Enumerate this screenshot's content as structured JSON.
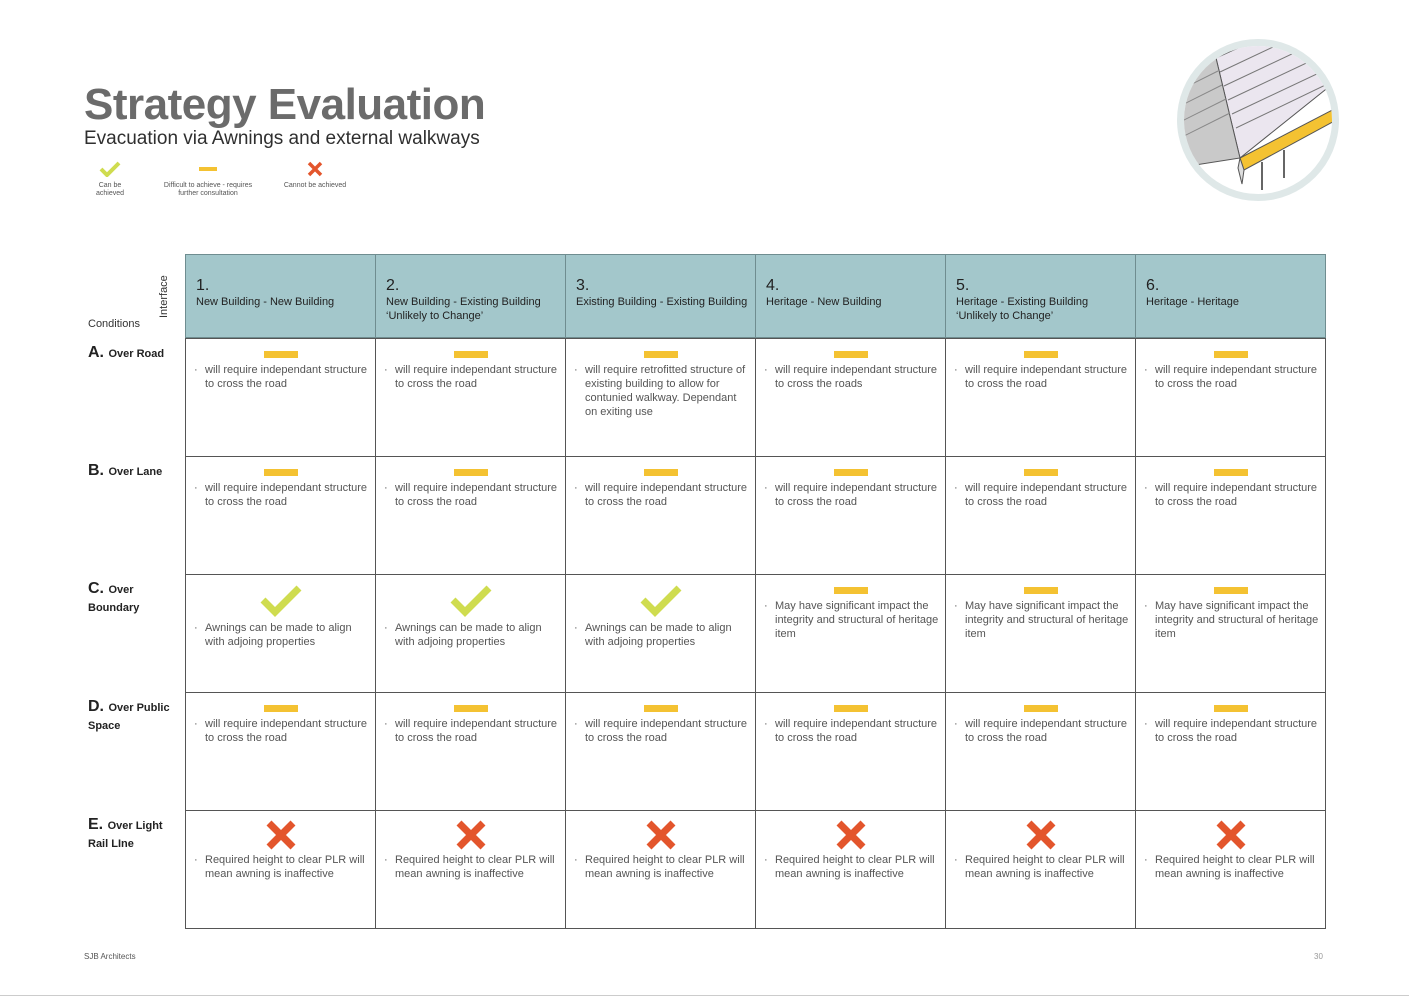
{
  "title": "Strategy Evaluation",
  "subtitle": "Evacuation via Awnings and external walkways",
  "legend": [
    {
      "symbol": "check",
      "label": "Can be achieved"
    },
    {
      "symbol": "dash",
      "label": "Difficult to achieve - requires further consultation"
    },
    {
      "symbol": "cross",
      "label": "Cannot be achieved"
    }
  ],
  "colors": {
    "check": "#cfdc4f",
    "dash": "#f4c232",
    "cross": "#e3552c",
    "header_bg": "#a3c7cb"
  },
  "table": {
    "conditions_label": "Conditions",
    "interface_label": "Interface",
    "columns": [
      {
        "num": "1.",
        "name": "New Building - New Building"
      },
      {
        "num": "2.",
        "name": "New Building - Existing Building ‘Unlikely to Change’"
      },
      {
        "num": "3.",
        "name": "Existing Building - Existing Building"
      },
      {
        "num": "4.",
        "name": "Heritage - New Building"
      },
      {
        "num": "5.",
        "name": "Heritage - Existing Building ‘Unlikely to Change’"
      },
      {
        "num": "6.",
        "name": "Heritage - Heritage"
      }
    ],
    "rows": [
      {
        "letter": "A.",
        "name": "Over Road",
        "cells": [
          {
            "symbol": "dash",
            "text": "will require independant structure to cross the road"
          },
          {
            "symbol": "dash",
            "text": "will require independant structure to cross the road"
          },
          {
            "symbol": "dash",
            "text": "will require retrofitted structure of existing building to allow for contunied walkway. Dependant on exiting use"
          },
          {
            "symbol": "dash",
            "text": "will require independant structure to cross the roads"
          },
          {
            "symbol": "dash",
            "text": "will require independant structure to cross the road"
          },
          {
            "symbol": "dash",
            "text": "will require independant structure to cross the road"
          }
        ]
      },
      {
        "letter": "B.",
        "name": "Over Lane",
        "cells": [
          {
            "symbol": "dash",
            "text": "will require independant structure to cross the road"
          },
          {
            "symbol": "dash",
            "text": "will require independant structure to cross the road"
          },
          {
            "symbol": "dash",
            "text": "will require independant structure to cross the road"
          },
          {
            "symbol": "dash",
            "text": "will require independant structure to cross the road"
          },
          {
            "symbol": "dash",
            "text": "will require independant structure to cross the road"
          },
          {
            "symbol": "dash",
            "text": "will require independant structure to cross the road"
          }
        ]
      },
      {
        "letter": "C.",
        "name": "Over Boundary",
        "cells": [
          {
            "symbol": "check",
            "text": "Awnings can be made to align with adjoing properties"
          },
          {
            "symbol": "check",
            "text": "Awnings can be made to align with adjoing properties"
          },
          {
            "symbol": "check",
            "text": "Awnings can be made to align with adjoing properties"
          },
          {
            "symbol": "dash",
            "text": "May have significant impact the integrity and structural of heritage item"
          },
          {
            "symbol": "dash",
            "text": "May have significant impact the integrity and structural of heritage item"
          },
          {
            "symbol": "dash",
            "text": "May have significant impact the integrity and structural of heritage item"
          }
        ]
      },
      {
        "letter": "D.",
        "name": "Over Public Space",
        "cells": [
          {
            "symbol": "dash",
            "text": "will require independant structure to cross the road"
          },
          {
            "symbol": "dash",
            "text": "will require independant structure to cross the road"
          },
          {
            "symbol": "dash",
            "text": "will require independant structure to cross the road"
          },
          {
            "symbol": "dash",
            "text": "will require independant structure to cross the road"
          },
          {
            "symbol": "dash",
            "text": "will require independant structure to cross the road"
          },
          {
            "symbol": "dash",
            "text": "will require independant structure to cross the road"
          }
        ]
      },
      {
        "letter": "E.",
        "name": "Over Light Rail LIne",
        "cells": [
          {
            "symbol": "cross",
            "text": "Required height to clear PLR will mean awning is inaffective"
          },
          {
            "symbol": "cross",
            "text": "Required height to clear PLR will mean awning is inaffective"
          },
          {
            "symbol": "cross",
            "text": "Required height to clear PLR will mean awning is inaffective"
          },
          {
            "symbol": "cross",
            "text": "Required height to clear PLR will mean awning is inaffective"
          },
          {
            "symbol": "cross",
            "text": "Required height to clear PLR will mean awning is inaffective"
          },
          {
            "symbol": "cross",
            "text": "Required height to clear PLR will mean awning is inaffective"
          }
        ]
      }
    ]
  },
  "footer": {
    "company": "SJB Architects",
    "page": "30"
  }
}
